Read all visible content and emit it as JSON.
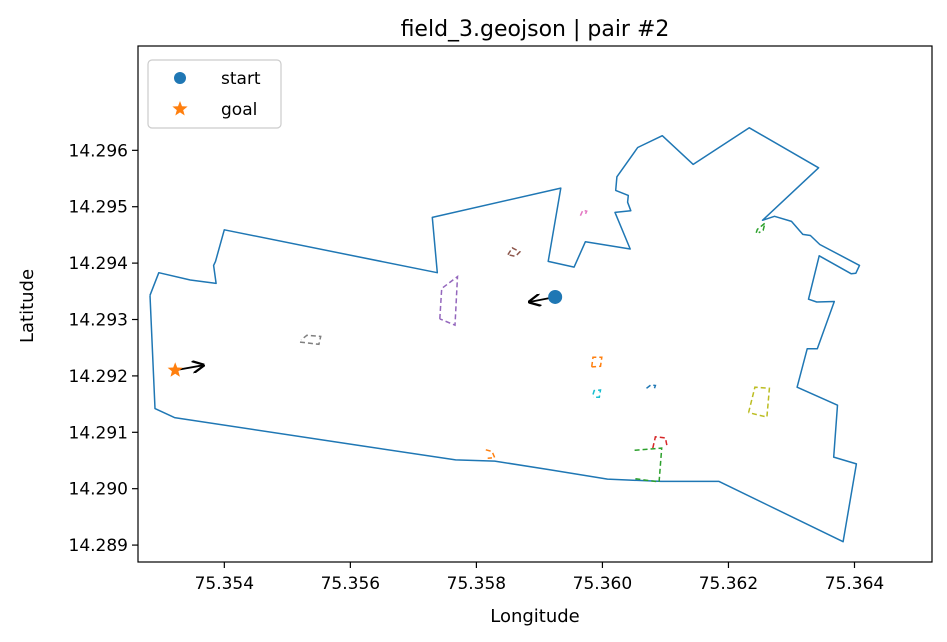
{
  "chart_data": {
    "type": "line",
    "title": "field_3.geojson | pair #2",
    "xlabel": "Longitude",
    "ylabel": "Latitude",
    "xlim": [
      75.35263,
      75.36523
    ],
    "ylim": [
      14.2887,
      14.29785
    ],
    "xticks": [
      75.354,
      75.356,
      75.358,
      75.36,
      75.362,
      75.364
    ],
    "xtick_labels": [
      "75.354",
      "75.356",
      "75.358",
      "75.360",
      "75.362",
      "75.364"
    ],
    "yticks": [
      14.289,
      14.29,
      14.291,
      14.292,
      14.293,
      14.294,
      14.295,
      14.296
    ],
    "ytick_labels": [
      "14.289",
      "14.290",
      "14.291",
      "14.292",
      "14.293",
      "14.294",
      "14.295",
      "14.296"
    ],
    "grid": false,
    "legend": {
      "placement": "top-left",
      "entries": [
        {
          "label": "start",
          "marker": "circle",
          "color": "#1f77b4"
        },
        {
          "label": "goal",
          "marker": "star",
          "color": "#ff7f0e"
        }
      ]
    },
    "boundary": {
      "color": "#1f77b4",
      "points": [
        [
          75.35282,
          14.29343
        ],
        [
          75.35296,
          14.29383
        ],
        [
          75.35346,
          14.2937
        ],
        [
          75.35387,
          14.29364
        ],
        [
          75.35383,
          14.29396
        ],
        [
          75.35386,
          14.29403
        ],
        [
          75.354,
          14.29459
        ],
        [
          75.35738,
          14.29383
        ],
        [
          75.3573,
          14.29481
        ],
        [
          75.35934,
          14.29533
        ],
        [
          75.35914,
          14.29403
        ],
        [
          75.35955,
          14.29393
        ],
        [
          75.35973,
          14.29438
        ],
        [
          75.36044,
          14.29425
        ],
        [
          75.3602,
          14.2949
        ],
        [
          75.36045,
          14.29493
        ],
        [
          75.3604,
          14.29508
        ],
        [
          75.36041,
          14.2952
        ],
        [
          75.36021,
          14.29529
        ],
        [
          75.36023,
          14.29553
        ],
        [
          75.36056,
          14.29605
        ],
        [
          75.36095,
          14.29626
        ],
        [
          75.36144,
          14.29575
        ],
        [
          75.36233,
          14.2964
        ],
        [
          75.36343,
          14.29569
        ],
        [
          75.36254,
          14.29476
        ],
        [
          75.36273,
          14.29483
        ],
        [
          75.363,
          14.29474
        ],
        [
          75.36318,
          14.29451
        ],
        [
          75.3633,
          14.29449
        ],
        [
          75.36345,
          14.29433
        ],
        [
          75.36408,
          14.29396
        ],
        [
          75.36402,
          14.29382
        ],
        [
          75.36395,
          14.29381
        ],
        [
          75.36344,
          14.29413
        ],
        [
          75.36327,
          14.29336
        ],
        [
          75.3634,
          14.29331
        ],
        [
          75.36368,
          14.29332
        ],
        [
          75.36341,
          14.29248
        ],
        [
          75.36325,
          14.29248
        ],
        [
          75.36309,
          14.2918
        ],
        [
          75.36373,
          14.29148
        ],
        [
          75.36367,
          14.29056
        ],
        [
          75.36403,
          14.29044
        ],
        [
          75.36382,
          14.28906
        ],
        [
          75.36262,
          14.28971
        ],
        [
          75.36185,
          14.29013
        ],
        [
          75.36093,
          14.29013
        ],
        [
          75.36008,
          14.29017
        ],
        [
          75.35914,
          14.29034
        ],
        [
          75.35829,
          14.29049
        ],
        [
          75.35767,
          14.29051
        ],
        [
          75.35617,
          14.29076
        ],
        [
          75.35321,
          14.29126
        ],
        [
          75.3529,
          14.29142
        ],
        [
          75.35282,
          14.29343
        ]
      ]
    },
    "obstacles": [
      {
        "color": "#1f77b4",
        "points": [
          [
            75.3607,
            14.29178
          ],
          [
            75.36077,
            14.29184
          ],
          [
            75.36084,
            14.29183
          ],
          [
            75.36082,
            14.29176
          ]
        ]
      },
      {
        "color": "#ff7f0e",
        "points": [
          [
            75.35983,
            14.29216
          ],
          [
            75.35985,
            14.29233
          ],
          [
            75.35999,
            14.29233
          ],
          [
            75.35997,
            14.29217
          ],
          [
            75.35983,
            14.29216
          ]
        ]
      },
      {
        "color": "#ff7f0e",
        "points": [
          [
            75.35815,
            14.29069
          ],
          [
            75.35825,
            14.29066
          ],
          [
            75.35829,
            14.29055
          ],
          [
            75.35818,
            14.29054
          ]
        ]
      },
      {
        "color": "#2ca02c",
        "points": [
          [
            75.36051,
            14.29068
          ],
          [
            75.36094,
            14.29072
          ],
          [
            75.3609,
            14.29012
          ],
          [
            75.36049,
            14.29018
          ]
        ]
      },
      {
        "color": "#2ca02c",
        "points": [
          [
            75.36244,
            14.29454
          ],
          [
            75.36246,
            14.2946
          ],
          [
            75.36258,
            14.29471
          ],
          [
            75.36255,
            14.29458
          ],
          [
            75.36248,
            14.29454
          ]
        ]
      },
      {
        "color": "#d62728",
        "points": [
          [
            75.3608,
            14.29072
          ],
          [
            75.36084,
            14.29092
          ],
          [
            75.361,
            14.2909
          ],
          [
            75.36103,
            14.29073
          ]
        ]
      },
      {
        "color": "#9467bd",
        "points": [
          [
            75.35742,
            14.29301
          ],
          [
            75.35745,
            14.29355
          ],
          [
            75.3577,
            14.29376
          ],
          [
            75.35766,
            14.2929
          ],
          [
            75.35742,
            14.29301
          ]
        ]
      },
      {
        "color": "#8c564b",
        "points": [
          [
            75.3585,
            14.29415
          ],
          [
            75.35857,
            14.29427
          ],
          [
            75.35869,
            14.2942
          ],
          [
            75.35862,
            14.29412
          ],
          [
            75.3585,
            14.29415
          ]
        ]
      },
      {
        "color": "#e377c2",
        "points": [
          [
            75.35965,
            14.29484
          ],
          [
            75.35969,
            14.29494
          ],
          [
            75.35975,
            14.29492
          ],
          [
            75.35973,
            14.29487
          ]
        ]
      },
      {
        "color": "#7f7f7f",
        "points": [
          [
            75.3552,
            14.2926
          ],
          [
            75.3555,
            14.29256
          ],
          [
            75.35553,
            14.2927
          ],
          [
            75.35531,
            14.29272
          ],
          [
            75.35522,
            14.29264
          ]
        ]
      },
      {
        "color": "#bcbd22",
        "points": [
          [
            75.36232,
            14.29135
          ],
          [
            75.36242,
            14.2918
          ],
          [
            75.36265,
            14.29178
          ],
          [
            75.36261,
            14.29127
          ],
          [
            75.36232,
            14.29135
          ]
        ]
      },
      {
        "color": "#17becf",
        "points": [
          [
            75.35985,
            14.29167
          ],
          [
            75.35987,
            14.29174
          ],
          [
            75.35997,
            14.29175
          ],
          [
            75.35995,
            14.29162
          ],
          [
            75.35985,
            14.29162
          ]
        ]
      }
    ],
    "start": {
      "x": 75.35925,
      "y": 14.2934,
      "arrow_to": [
        75.35884,
        14.29331
      ]
    },
    "goal": {
      "x": 75.35322,
      "y": 14.2921,
      "arrow_to": [
        75.35367,
        14.29219
      ]
    }
  }
}
